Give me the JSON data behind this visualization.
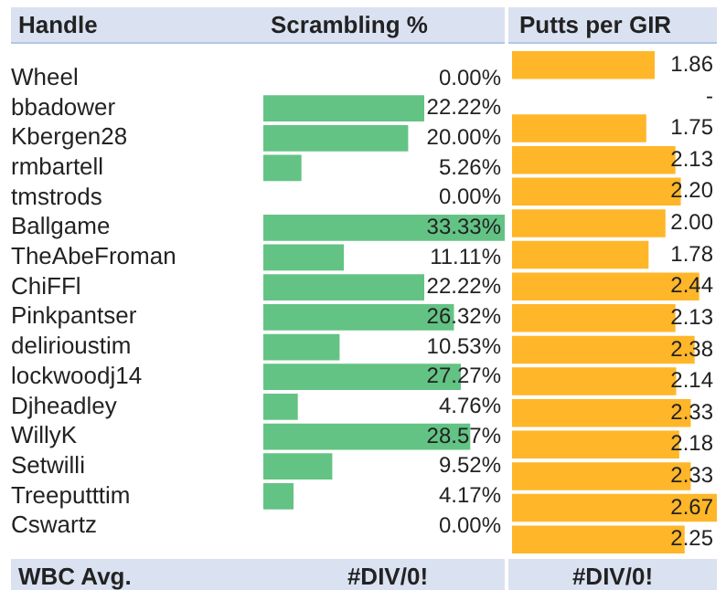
{
  "chart_data": [
    {
      "type": "bar",
      "orientation": "horizontal",
      "title": "Scrambling  %",
      "ylabel": "Handle",
      "tick_labels": "y",
      "categories": [
        "Wheel",
        "bbadower",
        "Kbergen28",
        "rmbartell",
        "tmstrods",
        "Ballgame",
        "TheAbeFroman",
        "ChiFFl",
        "Pinkpantser",
        "delirioustim",
        "lockwoodj14",
        "Djheadley",
        "WillyK",
        "Setwilli",
        "Treeputttim",
        "Cswartz"
      ],
      "color": "#63c384",
      "values": [
        0,
        22.22,
        20.0,
        5.26,
        0,
        33.33,
        11.11,
        22.22,
        26.32,
        10.53,
        27.27,
        4.76,
        28.57,
        9.52,
        4.17,
        0
      ],
      "value_labels": [
        "0.00%",
        "22.22%",
        "20.00%",
        "5.26%",
        "0.00%",
        "33.33%",
        "11.11%",
        "22.22%",
        "26.32%",
        "10.53%",
        "27.27%",
        "4.76%",
        "28.57%",
        "9.52%",
        "4.17%",
        "0.00%"
      ],
      "annotations": [
        "WBC Avg.",
        "#DIV/0!"
      ]
    },
    {
      "type": "bar",
      "orientation": "horizontal",
      "title": "Putts per GIR",
      "tick_labels": false,
      "categories": [
        null,
        null,
        null,
        null,
        null,
        null,
        null,
        null,
        null,
        null,
        null,
        null,
        null,
        null,
        null,
        null
      ],
      "color": "#ffb628",
      "values": [
        1.86,
        null,
        1.75,
        2.13,
        2.2,
        2.0,
        1.78,
        2.44,
        2.13,
        2.38,
        2.14,
        2.33,
        2.18,
        2.33,
        2.67,
        2.25
      ],
      "value_labels": [
        "1.86",
        "-",
        "1.75",
        "2.13",
        "2.20",
        "2.00",
        "1.78",
        "2.44",
        "2.13",
        "2.38",
        "2.14",
        "2.33",
        "2.18",
        "2.33",
        "2.67",
        "2.25"
      ],
      "annotations": [
        "#DIV/0!"
      ]
    }
  ]
}
